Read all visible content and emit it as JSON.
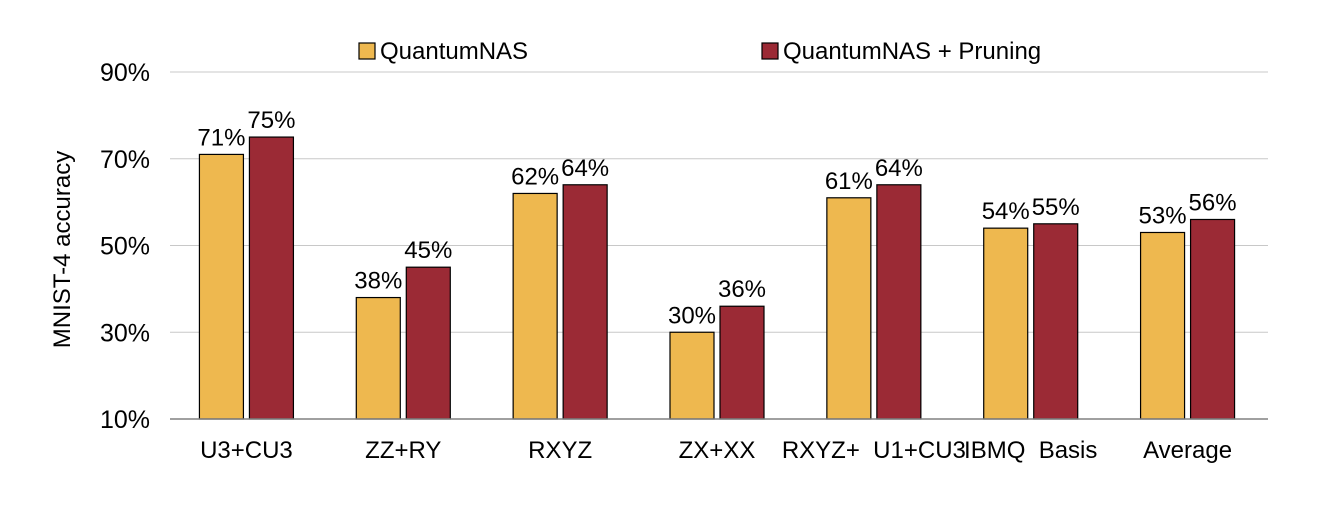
{
  "chart_data": {
    "type": "bar",
    "categories": [
      "U3+CU3",
      "ZZ+RY",
      "RXYZ",
      "ZX+XX",
      "RXYZ+  U1+CU3",
      "IBMQ  Basis",
      "Average"
    ],
    "series": [
      {
        "name": "QuantumNAS",
        "color": "#eeb84f",
        "values": [
          71,
          38,
          62,
          30,
          61,
          54,
          53
        ],
        "labels": [
          "71%",
          "38%",
          "62%",
          "30%",
          "61%",
          "54%",
          "53%"
        ]
      },
      {
        "name": "QuantumNAS + Pruning",
        "color": "#9b2a35",
        "values": [
          75,
          45,
          64,
          36,
          64,
          55,
          56
        ],
        "labels": [
          "75%",
          "45%",
          "64%",
          "36%",
          "64%",
          "55%",
          "56%"
        ]
      }
    ],
    "ylabel": "MNIST-4 accuracy",
    "xlabel": "",
    "title": "",
    "ylim": [
      10,
      90
    ],
    "yticks": [
      10,
      30,
      50,
      70,
      90
    ],
    "ytick_labels": [
      "10%",
      "30%",
      "50%",
      "70%",
      "90%"
    ],
    "grid": true,
    "legend": "top-center"
  }
}
